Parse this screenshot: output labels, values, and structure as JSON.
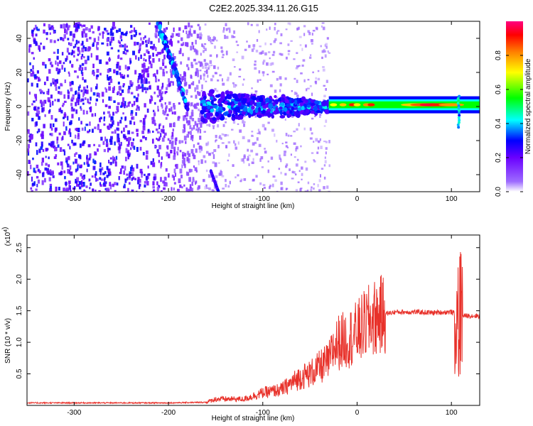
{
  "title": "C2E2.2025.334.11.26.G15",
  "chart_data": [
    {
      "type": "heatmap",
      "xlabel": "Height of straight line (km)",
      "ylabel": "Frequency (Hz)",
      "xlim": [
        -350,
        130
      ],
      "ylim": [
        -50,
        50
      ],
      "xticks": [
        -300,
        -200,
        -100,
        0,
        100
      ],
      "yticks": [
        40,
        20,
        0,
        -20,
        -40
      ],
      "colorbar": {
        "label": "Normalized spectral amplitude",
        "range": [
          0,
          1
        ],
        "ticks": [
          "0.0",
          "0.2",
          "0.4",
          "0.6",
          "0.8"
        ],
        "colors": [
          "#ffffff",
          "#6600ff",
          "#0000ff",
          "#00ffff",
          "#00ff00",
          "#ffff00",
          "#ff8000",
          "#ff0000",
          "#ff0080"
        ]
      },
      "features": [
        {
          "x_range": [
            -350,
            -165
          ],
          "frequency": "broadband noise",
          "amplitude": "0.1-0.3"
        },
        {
          "x_range": [
            -205,
            -180
          ],
          "frequency": "diagonal streak 45 to 0 Hz",
          "amplitude": "0.3-0.5"
        },
        {
          "x_range": [
            -165,
            -30
          ],
          "frequency": "band near 0 Hz",
          "amplitude": "0.2-0.5"
        },
        {
          "x_range": [
            -30,
            130
          ],
          "frequency": "band near 1 Hz",
          "amplitude": "0.4-0.95"
        }
      ]
    },
    {
      "type": "line",
      "xlabel": "Height of straight line (km)",
      "ylabel": "SNR (10 * v/v)",
      "yscale_label": "(x10^4)",
      "xlim": [
        -350,
        130
      ],
      "ylim": [
        0,
        2.7
      ],
      "xticks": [
        -300,
        -200,
        -100,
        0,
        100
      ],
      "yticks": [
        "0.5",
        "1.0",
        "1.5",
        "2.0",
        "2.5"
      ],
      "color": "#e8312a",
      "series": [
        {
          "x": [
            -350,
            -300,
            -250,
            -200,
            -160,
            -150,
            -120,
            -100,
            -80,
            -70,
            -60,
            -50,
            -40,
            -30,
            -25,
            -20,
            -10,
            0,
            10,
            20,
            30,
            40,
            60,
            80,
            100,
            105,
            108,
            110,
            112,
            115,
            120,
            130
          ],
          "y": [
            0.04,
            0.04,
            0.04,
            0.04,
            0.05,
            0.1,
            0.1,
            0.2,
            0.25,
            0.35,
            0.45,
            0.5,
            0.6,
            0.7,
            0.9,
            1.0,
            1.05,
            1.15,
            1.3,
            1.4,
            1.45,
            1.48,
            1.48,
            1.47,
            1.48,
            1.45,
            1.2,
            1.6,
            1.42,
            1.42,
            1.42,
            1.42
          ]
        }
      ]
    }
  ]
}
